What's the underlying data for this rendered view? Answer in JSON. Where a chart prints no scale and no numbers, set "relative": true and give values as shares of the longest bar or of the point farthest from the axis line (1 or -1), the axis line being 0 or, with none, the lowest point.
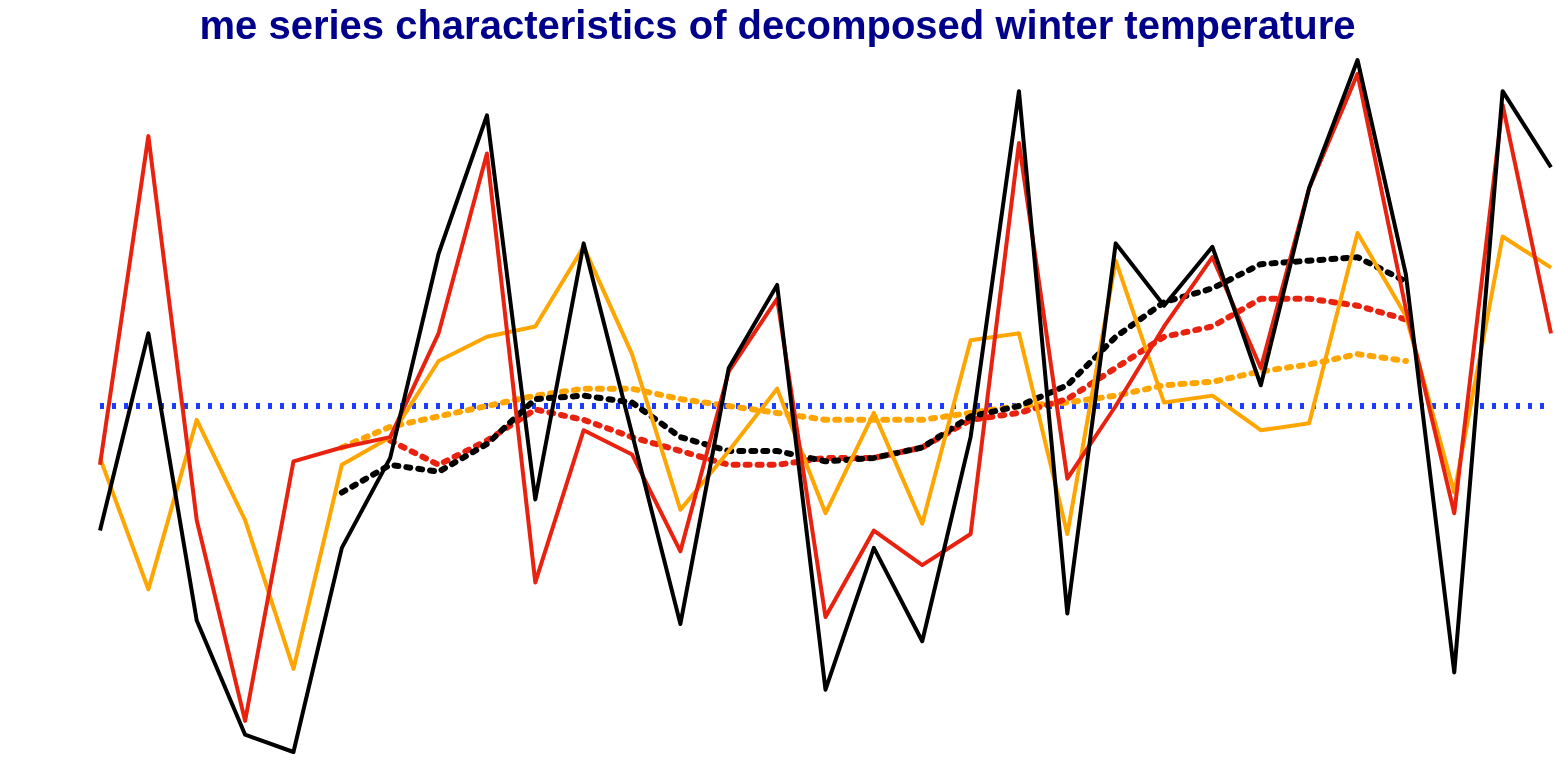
{
  "chart_data": {
    "type": "line",
    "title": "me series characteristics of decomposed winter temperature",
    "relative": true,
    "legend": false,
    "grid": false,
    "marker": "none",
    "categories": [
      null,
      null,
      null,
      null,
      null,
      null,
      null,
      null,
      null,
      null,
      null,
      null,
      null,
      null,
      null,
      null,
      null,
      null,
      null,
      null,
      null,
      null,
      null,
      null,
      null,
      null,
      null,
      null,
      null,
      null,
      null
    ],
    "series": [
      {
        "color": "#000000",
        "line_style": "solid",
        "values": [
          -0.36,
          0.21,
          -0.62,
          -0.95,
          -1,
          -0.41,
          -0.15,
          0.44,
          0.84,
          -0.27,
          0.47,
          -0.08,
          -0.63,
          0.11,
          0.35,
          -0.82,
          -0.41,
          -0.68,
          -0.09,
          0.91,
          -0.6,
          0.47,
          0.29,
          0.46,
          0.06,
          0.63,
          1,
          0.38,
          -0.77,
          0.91,
          0.69
        ]
      },
      {
        "color": "#e8220f",
        "line_style": "solid",
        "values": [
          -0.17,
          0.78,
          -0.33,
          -0.91,
          -0.16,
          -0.12,
          -0.09,
          0.21,
          0.73,
          -0.51,
          -0.07,
          -0.14,
          -0.42,
          0.1,
          0.31,
          -0.61,
          -0.36,
          -0.46,
          -0.37,
          0.76,
          -0.21,
          0,
          0.23,
          0.43,
          0.11,
          0.63,
          0.96,
          0.28,
          -0.31,
          0.87,
          0.21
        ]
      },
      {
        "color": "#ffa500",
        "line_style": "solid",
        "values": [
          -0.15,
          -0.53,
          -0.04,
          -0.33,
          -0.76,
          -0.17,
          -0.09,
          0.13,
          0.2,
          0.23,
          0.46,
          0.15,
          -0.3,
          -0.13,
          0.05,
          -0.31,
          -0.02,
          -0.34,
          0.19,
          0.21,
          -0.37,
          0.42,
          0.01,
          0.03,
          -0.07,
          -0.05,
          0.5,
          0.26,
          -0.25,
          0.49,
          0.4
        ]
      },
      {
        "color": "#000000",
        "line_style": "dotted",
        "values": [
          null,
          null,
          null,
          null,
          null,
          -0.25,
          -0.17,
          -0.19,
          -0.11,
          0.02,
          0.03,
          0.01,
          -0.09,
          -0.13,
          -0.13,
          -0.16,
          -0.15,
          -0.12,
          -0.03,
          0,
          0.06,
          0.2,
          0.3,
          0.34,
          0.41,
          0.42,
          0.43,
          0.36,
          null,
          null,
          null
        ]
      },
      {
        "color": "#e8220f",
        "line_style": "dotted",
        "values": [
          null,
          null,
          null,
          null,
          null,
          null,
          -0.1,
          -0.17,
          -0.1,
          -0.01,
          -0.04,
          -0.09,
          -0.13,
          -0.17,
          -0.17,
          -0.15,
          -0.15,
          -0.12,
          -0.04,
          -0.02,
          0.02,
          0.11,
          0.2,
          0.23,
          0.31,
          0.31,
          0.29,
          0.25,
          null,
          null,
          null
        ]
      },
      {
        "color": "#ffa500",
        "line_style": "dotted",
        "values": [
          null,
          null,
          null,
          null,
          null,
          -0.12,
          -0.06,
          -0.03,
          0,
          0.03,
          0.05,
          0.05,
          0.02,
          0,
          -0.02,
          -0.04,
          -0.04,
          -0.04,
          -0.02,
          0,
          0.01,
          0.03,
          0.06,
          0.07,
          0.1,
          0.12,
          0.15,
          0.13,
          null,
          null,
          null
        ]
      }
    ],
    "ref_lines": [
      {
        "axis": "y",
        "value": 0,
        "color": "#1a3cff",
        "line_style": "dotted"
      }
    ]
  }
}
